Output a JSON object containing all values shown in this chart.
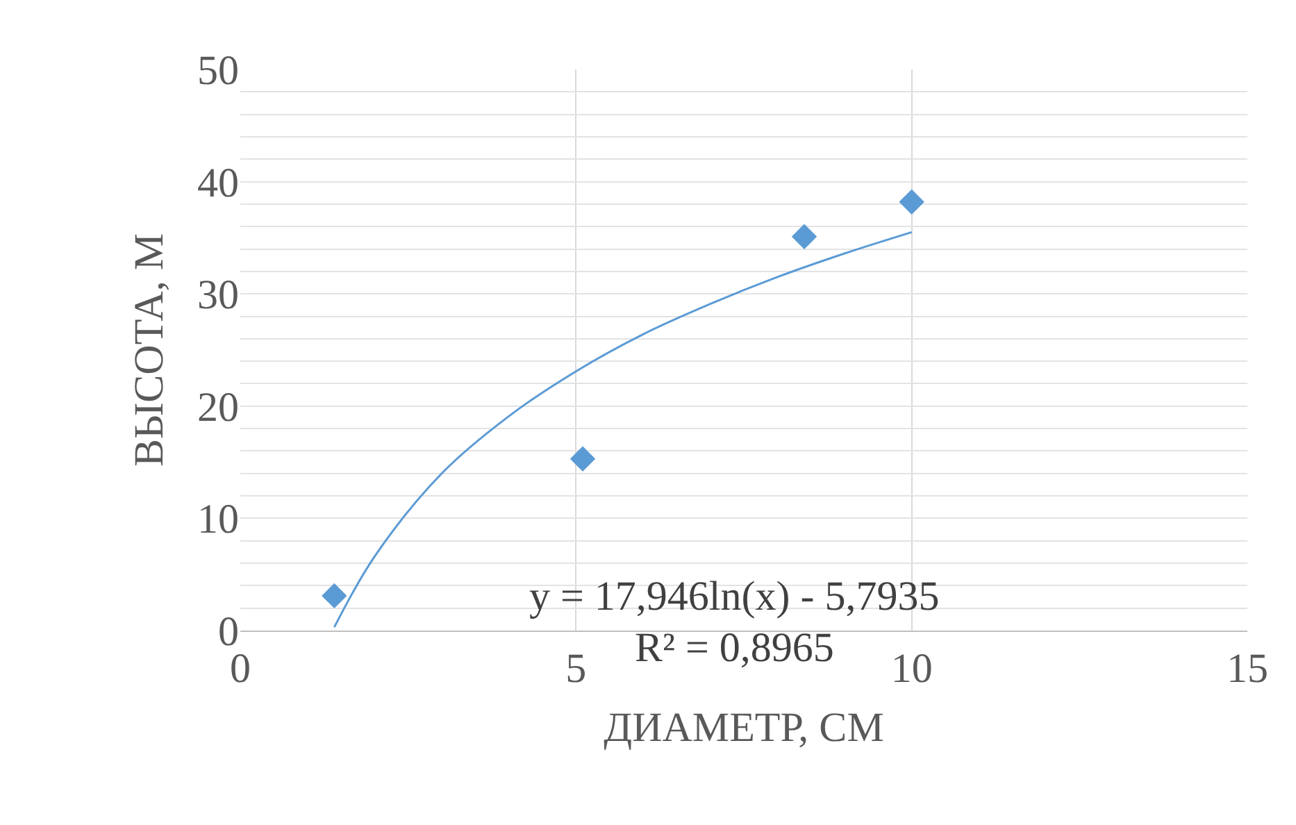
{
  "chart_data": {
    "type": "scatter",
    "xlabel": "ДИАМЕТР, СМ",
    "ylabel": "ВЫСОТА, М",
    "xlim": [
      0,
      15
    ],
    "xticks": [
      0,
      5,
      10,
      15
    ],
    "ylim": [
      0,
      50
    ],
    "yticks": [
      0,
      {
        "value": 2,
        "label": null
      },
      {
        "value": 4,
        "label": null
      },
      {
        "value": 6,
        "label": null
      },
      {
        "value": 8,
        "label": null
      },
      10,
      {
        "value": 12,
        "label": null
      },
      {
        "value": 14,
        "label": null
      },
      {
        "value": 16,
        "label": null
      },
      {
        "value": 18,
        "label": null
      },
      20,
      {
        "value": 22,
        "label": null
      },
      {
        "value": 24,
        "label": null
      },
      {
        "value": 26,
        "label": null
      },
      {
        "value": 28,
        "label": null
      },
      30,
      {
        "value": 32,
        "label": null
      },
      {
        "value": 34,
        "label": null
      },
      {
        "value": 36,
        "label": null
      },
      {
        "value": 38,
        "label": null
      },
      40,
      {
        "value": 42,
        "label": null
      },
      {
        "value": 44,
        "label": null
      },
      {
        "value": 46,
        "label": null
      },
      {
        "value": 48,
        "label": null
      },
      50
    ],
    "grid": true,
    "series": [
      {
        "marker": "diamond",
        "color": "#5b9bd5",
        "x": [
          1.4,
          5.1,
          8.4,
          10.0
        ],
        "values": [
          3.1,
          15.3,
          35.1,
          38.2
        ]
      },
      {
        "type": "line",
        "color": "#5b9bd5",
        "marker": "none",
        "x": [
          1.4,
          2,
          3,
          4,
          5,
          6,
          7,
          8,
          9,
          10
        ],
        "values": [
          0.3,
          6.6,
          14.0,
          19.1,
          23.1,
          26.4,
          29.1,
          31.5,
          33.6,
          35.5
        ]
      }
    ],
    "annotations": [
      "y = 17,946ln(x) - 5,7935",
      "R² = 0,8965"
    ]
  }
}
